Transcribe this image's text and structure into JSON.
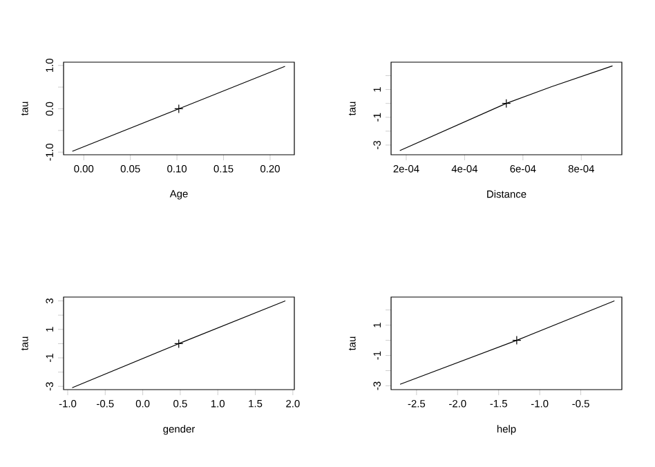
{
  "chart_data": [
    {
      "type": "line",
      "xlabel": "Age",
      "ylabel": "tau",
      "xlim": [
        -0.0217,
        0.226
      ],
      "ylim": [
        -1.06,
        1.075
      ],
      "xticks": [
        {
          "value": 0,
          "label": "0.00"
        },
        {
          "value": 0.05,
          "label": "0.05"
        },
        {
          "value": 0.1,
          "label": "0.10"
        },
        {
          "value": 0.15,
          "label": "0.15"
        },
        {
          "value": 0.2,
          "label": "0.20"
        }
      ],
      "yticks": [
        {
          "value": -1,
          "label": "-1.0"
        },
        {
          "value": -0.5,
          "label": null
        },
        {
          "value": 0,
          "label": "0.0"
        },
        {
          "value": 0.5,
          "label": null
        },
        {
          "value": 1,
          "label": "1.0"
        }
      ],
      "series": [
        {
          "color": "#000000",
          "x": [
            -0.0123,
            0.102,
            0.216
          ],
          "values": [
            -0.98,
            0,
            0.98
          ]
        },
        {
          "type": "scatter",
          "marker": "cross",
          "color": "#000000",
          "x": [
            0.102
          ],
          "values": [
            0
          ]
        }
      ]
    },
    {
      "type": "line",
      "xlabel": "Distance",
      "ylabel": "tau",
      "xlim": [
        0.000148,
        0.000939
      ],
      "ylim": [
        -3.7,
        2.97
      ],
      "xticks": [
        {
          "value": 0.0002,
          "label": "2e-04"
        },
        {
          "value": 0.0004,
          "label": "4e-04"
        },
        {
          "value": 0.0006,
          "label": "6e-04"
        },
        {
          "value": 0.0008,
          "label": "8e-04"
        }
      ],
      "yticks": [
        -3,
        {
          "value": -2,
          "label": null
        },
        -1,
        {
          "value": 0,
          "label": null
        },
        1,
        {
          "value": 2,
          "label": null
        }
      ],
      "series": [
        {
          "color": "#000000",
          "x": [
            0.000178,
            0.000543,
            0.000698,
            0.000907
          ],
          "values": [
            -3.4,
            0,
            1.2,
            2.7
          ]
        },
        {
          "type": "scatter",
          "marker": "cross",
          "color": "#000000",
          "x": [
            0.000543
          ],
          "values": [
            0
          ]
        }
      ]
    },
    {
      "type": "line",
      "xlabel": "gender",
      "ylabel": "tau",
      "xlim": [
        -1.055,
        2.02
      ],
      "ylim": [
        -3.23,
        3.27
      ],
      "xticks": [
        {
          "value": -1,
          "label": "-1.0"
        },
        {
          "value": -0.5,
          "label": "-0.5"
        },
        {
          "value": 0,
          "label": "0.0"
        },
        {
          "value": 0.5,
          "label": "0.5"
        },
        {
          "value": 1,
          "label": "1.0"
        },
        {
          "value": 1.5,
          "label": "1.5"
        },
        {
          "value": 2,
          "label": "2.0"
        }
      ],
      "yticks": [
        -3,
        {
          "value": -2,
          "label": null
        },
        -1,
        {
          "value": 0,
          "label": null
        },
        1,
        {
          "value": 2,
          "label": null
        },
        3
      ],
      "series": [
        {
          "color": "#000000",
          "x": [
            -0.94,
            0.48,
            1.9
          ],
          "values": [
            -3.1,
            0,
            3.0
          ]
        },
        {
          "type": "scatter",
          "marker": "cross",
          "color": "#000000",
          "x": [
            0.48
          ],
          "values": [
            0
          ]
        }
      ]
    },
    {
      "type": "line",
      "xlabel": "help",
      "ylabel": "tau",
      "xlim": [
        -2.81,
        0.0
      ],
      "ylim": [
        -3.25,
        2.85
      ],
      "xticks": [
        -2.5,
        {
          "value": -2,
          "label": "-2.0"
        },
        -1.5,
        {
          "value": -1,
          "label": "-1.0"
        },
        -0.5
      ],
      "yticks": [
        -3,
        {
          "value": -2,
          "label": null
        },
        -1,
        {
          "value": 0,
          "label": null
        },
        1,
        {
          "value": 2,
          "label": null
        }
      ],
      "series": [
        {
          "color": "#000000",
          "x": [
            -2.7,
            -1.28,
            -0.09
          ],
          "values": [
            -2.9,
            0,
            2.6
          ]
        },
        {
          "type": "scatter",
          "marker": "cross",
          "color": "#000000",
          "x": [
            -1.28
          ],
          "values": [
            0
          ]
        }
      ]
    }
  ]
}
